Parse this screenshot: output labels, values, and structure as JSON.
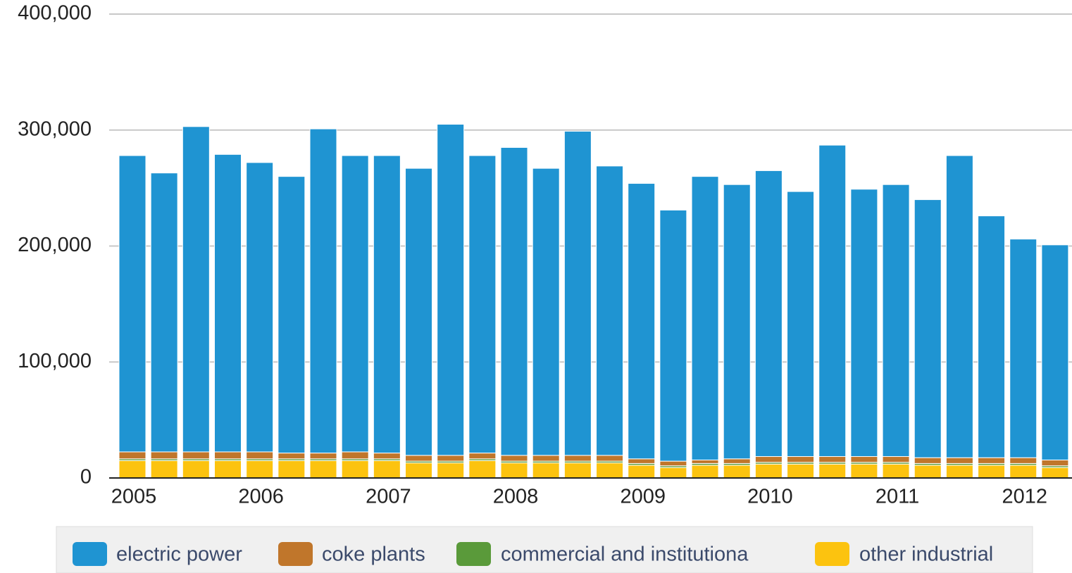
{
  "chart_data": {
    "type": "stacked-bar",
    "categories": [
      "2005",
      null,
      null,
      null,
      "2006",
      null,
      null,
      null,
      "2007",
      null,
      null,
      null,
      "2008",
      null,
      null,
      null,
      "2009",
      null,
      null,
      null,
      "2010",
      null,
      null,
      null,
      "2011",
      null,
      null,
      null,
      "2012",
      null
    ],
    "series": [
      {
        "name": "electric power",
        "color": "#1f94d2",
        "values": [
          255500,
          240500,
          280500,
          256500,
          249500,
          238500,
          279500,
          255500,
          256500,
          247500,
          285500,
          256500,
          265500,
          247500,
          279500,
          249500,
          237500,
          216500,
          244500,
          236500,
          246500,
          228500,
          268500,
          230500,
          234500,
          222500,
          260500,
          208500,
          188500,
          185500
        ]
      },
      {
        "name": "coke plants",
        "color": "#c0762b",
        "values": [
          6000,
          6000,
          6000,
          6000,
          6000,
          5000,
          5000,
          6000,
          5000,
          5000,
          5000,
          5000,
          5000,
          5000,
          5000,
          5000,
          4000,
          4000,
          3000,
          4000,
          5000,
          5000,
          5000,
          5000,
          5000,
          5000,
          5000,
          5000,
          5000,
          5000
        ]
      },
      {
        "name": "commercial and institutiona",
        "color": "#5a9a3a",
        "values": [
          1500,
          1500,
          1500,
          1500,
          1500,
          1500,
          1500,
          1500,
          1500,
          1500,
          1500,
          1500,
          1500,
          1500,
          1500,
          1500,
          1500,
          1500,
          1500,
          1500,
          1500,
          1500,
          1500,
          1500,
          1500,
          1500,
          1500,
          1500,
          1500,
          1500
        ]
      },
      {
        "name": "other industrial",
        "color": "#fcc30f",
        "values": [
          15000,
          15000,
          15000,
          15000,
          15000,
          15000,
          15000,
          15000,
          15000,
          13000,
          13000,
          15000,
          13000,
          13000,
          13000,
          13000,
          11000,
          9000,
          11000,
          11000,
          12000,
          12000,
          12000,
          12000,
          12000,
          11000,
          11000,
          11000,
          11000,
          9000
        ]
      }
    ],
    "ylim": [
      0,
      400000
    ],
    "yticks": [
      0,
      {
        "value": 100000,
        "label": "100,000"
      },
      {
        "value": 200000,
        "label": "200,000"
      },
      {
        "value": 300000,
        "label": "300,000"
      },
      {
        "value": 400000,
        "label": "400,000"
      }
    ],
    "grid": true,
    "legend": "bottom"
  }
}
